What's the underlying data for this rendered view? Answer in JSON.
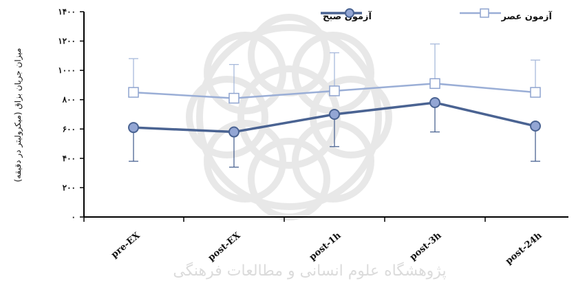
{
  "chart_data": {
    "type": "line",
    "categories": [
      "pre-EX",
      "post-EX",
      "post-1h",
      "post-3h",
      "post-24h"
    ],
    "y_tick_labels": [
      "۰",
      "۲۰۰",
      "۴۰۰",
      "۶۰۰",
      "۸۰۰",
      "۱۰۰۰",
      "۱۲۰۰",
      "۱۴۰۰"
    ],
    "ylim": [
      0,
      1400
    ],
    "ylabel": "میزان جریان بزاق (میکرولیتر در دقیقه)",
    "xlabel": "",
    "title": "",
    "grid": false,
    "legend_position": "top-right",
    "series": [
      {
        "name": "آزمون صبح",
        "values": [
          610,
          580,
          700,
          780,
          620
        ],
        "error_down": [
          230,
          240,
          220,
          200,
          240
        ],
        "color": "#4a6392",
        "marker": "circle"
      },
      {
        "name": "آزمون عصر",
        "values": [
          850,
          810,
          860,
          910,
          850
        ],
        "error_up": [
          230,
          230,
          260,
          270,
          220
        ],
        "color": "#9aaed6",
        "marker": "square"
      }
    ]
  },
  "watermark": {
    "text": "پژوهشگاه علوم انسانی و مطالعات فرهنگی"
  }
}
